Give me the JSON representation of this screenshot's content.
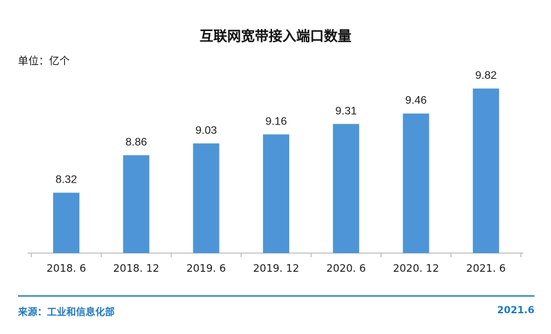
{
  "chart_data": {
    "type": "bar",
    "title": "互联网宽带接入端口数量",
    "unit_label": "单位：亿个",
    "xlabel": "",
    "ylabel": "",
    "categories": [
      "2018. 6",
      "2018. 12",
      "2019. 6",
      "2019. 12",
      "2020. 6",
      "2020. 12",
      "2021. 6"
    ],
    "values": [
      8.32,
      8.86,
      9.03,
      9.16,
      9.31,
      9.46,
      9.82
    ],
    "value_labels": [
      "8.32",
      "8.86",
      "9.03",
      "9.16",
      "9.31",
      "9.46",
      "9.82"
    ],
    "ylim": [
      7.45,
      9.96
    ],
    "grid": false,
    "bar_color": "#4d95d6",
    "axis_color": "#bfbfbf"
  },
  "footer": {
    "source": "来源：工业和信息化部",
    "date": "2021.6",
    "accent_color": "#2f86c9"
  }
}
